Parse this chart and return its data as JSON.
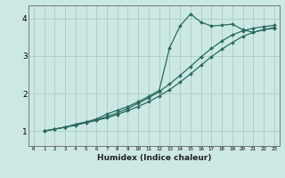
{
  "xlabel": "Humidex (Indice chaleur)",
  "bg_color": "#cce8e4",
  "line_color": "#2a6b5e",
  "grid_color": "#aaccc8",
  "xlim": [
    -0.5,
    23.5
  ],
  "ylim": [
    0.6,
    4.35
  ],
  "line1_x": [
    1,
    2,
    3,
    4,
    5,
    6,
    7,
    8,
    9,
    10,
    11,
    12,
    13,
    14,
    15,
    16,
    17,
    18,
    19,
    20,
    21,
    22,
    23
  ],
  "line1_y": [
    1.0,
    1.05,
    1.1,
    1.15,
    1.22,
    1.28,
    1.35,
    1.44,
    1.54,
    1.65,
    1.78,
    1.93,
    2.1,
    2.3,
    2.52,
    2.75,
    2.98,
    3.18,
    3.36,
    3.52,
    3.63,
    3.7,
    3.76
  ],
  "line2_x": [
    1,
    2,
    3,
    4,
    5,
    6,
    7,
    8,
    9,
    10,
    11,
    12,
    13,
    14,
    15,
    16,
    17,
    18,
    19,
    20,
    21,
    22,
    23
  ],
  "line2_y": [
    1.0,
    1.05,
    1.1,
    1.18,
    1.24,
    1.32,
    1.45,
    1.55,
    1.65,
    1.78,
    1.92,
    2.08,
    3.22,
    3.8,
    4.12,
    3.9,
    3.8,
    3.82,
    3.85,
    3.7,
    3.63,
    3.7,
    3.74
  ],
  "line3_x": [
    1,
    2,
    3,
    4,
    5,
    6,
    7,
    8,
    9,
    10,
    11,
    12,
    13,
    14,
    15,
    16,
    17,
    18,
    19,
    20,
    21,
    22,
    23
  ],
  "line3_y": [
    1.0,
    1.05,
    1.1,
    1.17,
    1.23,
    1.3,
    1.38,
    1.48,
    1.6,
    1.74,
    1.88,
    2.05,
    2.25,
    2.48,
    2.72,
    2.97,
    3.2,
    3.4,
    3.56,
    3.67,
    3.74,
    3.78,
    3.82
  ],
  "yticks": [
    1,
    2,
    3,
    4
  ],
  "xticks": [
    0,
    1,
    2,
    3,
    4,
    5,
    6,
    7,
    8,
    9,
    10,
    11,
    12,
    13,
    14,
    15,
    16,
    17,
    18,
    19,
    20,
    21,
    22,
    23
  ]
}
